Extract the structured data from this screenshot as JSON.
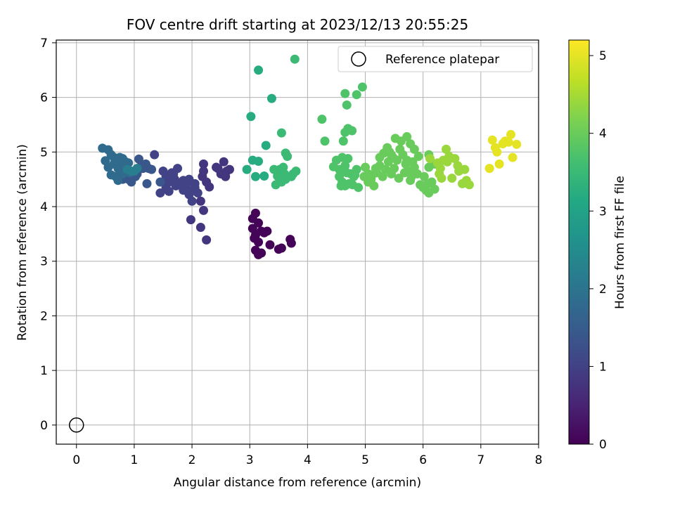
{
  "chart_data": {
    "type": "scatter",
    "title": "FOV centre drift starting at 2023/12/13 20:55:25",
    "xlabel": "Angular distance from reference (arcmin)",
    "ylabel": "Rotation from reference (arcmin)",
    "xlim": [
      -0.35,
      8.0
    ],
    "ylim": [
      -0.35,
      7.05
    ],
    "xticks": [
      "0",
      "1",
      "2",
      "3",
      "4",
      "5",
      "6",
      "7",
      "8"
    ],
    "yticks": [
      "0",
      "1",
      "2",
      "3",
      "4",
      "5",
      "6",
      "7"
    ],
    "grid": true,
    "legend": {
      "location": "top-right",
      "label": "Reference platepar"
    },
    "reference_point": {
      "x": 0,
      "y": 0
    },
    "colorbar": {
      "label": "Hours from first FF file",
      "range": [
        0,
        5.2
      ],
      "ticks": [
        "0",
        "1",
        "2",
        "3",
        "4",
        "5"
      ],
      "colormap": "viridis"
    },
    "points": [
      [
        3.05,
        3.78,
        0.05
      ],
      [
        3.1,
        3.88,
        0.05
      ],
      [
        3.15,
        3.7,
        0.05
      ],
      [
        3.05,
        3.6,
        0.05
      ],
      [
        3.2,
        3.55,
        0.05
      ],
      [
        3.1,
        3.48,
        0.05
      ],
      [
        3.25,
        3.52,
        0.05
      ],
      [
        3.3,
        3.55,
        0.05
      ],
      [
        3.15,
        3.35,
        0.05
      ],
      [
        3.1,
        3.2,
        0.05
      ],
      [
        3.2,
        3.15,
        0.05
      ],
      [
        3.15,
        3.12,
        0.05
      ],
      [
        3.35,
        3.3,
        0.05
      ],
      [
        3.5,
        3.22,
        0.05
      ],
      [
        3.55,
        3.24,
        0.05
      ],
      [
        3.7,
        3.4,
        0.05
      ],
      [
        3.72,
        3.33,
        0.05
      ],
      [
        3.08,
        3.42,
        0.05
      ],
      [
        2.2,
        4.78,
        0.8
      ],
      [
        2.2,
        4.65,
        0.8
      ],
      [
        2.18,
        4.55,
        0.8
      ],
      [
        2.25,
        4.45,
        0.8
      ],
      [
        2.3,
        4.36,
        0.8
      ],
      [
        2.45,
        4.7,
        0.8
      ],
      [
        2.55,
        4.82,
        0.8
      ],
      [
        2.6,
        4.65,
        0.8
      ],
      [
        2.5,
        4.6,
        0.8
      ],
      [
        2.58,
        4.55,
        0.8
      ],
      [
        2.65,
        4.68,
        0.8
      ],
      [
        2.42,
        4.72,
        0.8
      ],
      [
        2.15,
        4.1,
        0.8
      ],
      [
        2.2,
        3.93,
        0.8
      ],
      [
        1.98,
        3.76,
        0.8
      ],
      [
        2.15,
        3.62,
        0.8
      ],
      [
        2.25,
        3.39,
        0.8
      ],
      [
        1.35,
        4.95,
        1.0
      ],
      [
        1.5,
        4.65,
        1.0
      ],
      [
        1.55,
        4.55,
        1.0
      ],
      [
        1.6,
        4.45,
        1.0
      ],
      [
        1.65,
        4.62,
        1.0
      ],
      [
        1.7,
        4.5,
        1.0
      ],
      [
        1.75,
        4.7,
        1.0
      ],
      [
        1.8,
        4.4,
        1.0
      ],
      [
        1.85,
        4.48,
        1.0
      ],
      [
        1.9,
        4.35,
        1.0
      ],
      [
        1.95,
        4.5,
        1.0
      ],
      [
        2.0,
        4.3,
        1.0
      ],
      [
        2.05,
        4.42,
        1.0
      ],
      [
        2.1,
        4.25,
        1.0
      ],
      [
        1.95,
        4.22,
        1.0
      ],
      [
        2.0,
        4.1,
        1.0
      ],
      [
        1.45,
        4.25,
        1.0
      ],
      [
        1.55,
        4.35,
        1.0
      ],
      [
        1.6,
        4.28,
        1.0
      ],
      [
        1.5,
        4.45,
        1.0
      ],
      [
        1.72,
        4.38,
        1.0
      ],
      [
        1.85,
        4.3,
        1.0
      ],
      [
        1.92,
        4.45,
        1.0
      ],
      [
        2.05,
        4.35,
        1.0
      ],
      [
        1.68,
        4.6,
        1.0
      ],
      [
        1.2,
        4.78,
        1.4
      ],
      [
        1.25,
        4.7,
        1.4
      ],
      [
        1.3,
        4.68,
        1.4
      ],
      [
        1.08,
        4.87,
        1.4
      ],
      [
        1.1,
        4.72,
        1.4
      ],
      [
        1.15,
        4.7,
        1.4
      ],
      [
        1.05,
        4.6,
        1.4
      ],
      [
        1.02,
        4.55,
        1.4
      ],
      [
        0.95,
        4.45,
        1.4
      ],
      [
        0.9,
        4.5,
        1.4
      ],
      [
        0.98,
        4.62,
        1.4
      ],
      [
        1.22,
        4.42,
        1.4
      ],
      [
        0.85,
        4.58,
        1.4
      ],
      [
        0.8,
        4.5,
        1.4
      ],
      [
        0.75,
        4.55,
        1.4
      ],
      [
        1.45,
        4.45,
        1.4
      ],
      [
        0.45,
        5.07,
        1.8
      ],
      [
        0.55,
        5.04,
        1.8
      ],
      [
        0.6,
        4.95,
        1.8
      ],
      [
        0.65,
        4.9,
        1.8
      ],
      [
        0.7,
        4.85,
        1.8
      ],
      [
        0.75,
        4.9,
        1.8
      ],
      [
        0.8,
        4.88,
        1.8
      ],
      [
        0.85,
        4.82,
        1.8
      ],
      [
        0.9,
        4.8,
        1.8
      ],
      [
        0.78,
        4.75,
        1.8
      ],
      [
        0.72,
        4.7,
        1.8
      ],
      [
        0.65,
        4.78,
        1.8
      ],
      [
        0.5,
        4.84,
        1.8
      ],
      [
        0.55,
        4.72,
        1.8
      ],
      [
        0.6,
        4.58,
        1.8
      ],
      [
        0.68,
        4.55,
        1.8
      ],
      [
        0.72,
        4.48,
        1.8
      ],
      [
        0.8,
        4.6,
        1.8
      ],
      [
        0.85,
        4.7,
        1.8
      ],
      [
        0.92,
        4.62,
        1.8
      ],
      [
        0.75,
        4.62,
        1.8
      ],
      [
        0.95,
        4.65,
        2.2
      ],
      [
        1.0,
        4.65,
        2.2
      ],
      [
        1.05,
        4.7,
        2.2
      ],
      [
        0.88,
        4.68,
        2.2
      ],
      [
        2.95,
        4.68,
        3.2
      ],
      [
        3.05,
        4.85,
        3.2
      ],
      [
        3.15,
        4.83,
        3.2
      ],
      [
        3.1,
        4.55,
        3.2
      ],
      [
        3.25,
        4.56,
        3.2
      ],
      [
        3.02,
        5.65,
        3.2
      ],
      [
        3.28,
        5.12,
        3.2
      ],
      [
        3.38,
        5.98,
        3.2
      ],
      [
        3.15,
        6.5,
        3.2
      ],
      [
        3.45,
        4.4,
        3.5
      ],
      [
        3.48,
        4.56,
        3.5
      ],
      [
        3.52,
        4.68,
        3.5
      ],
      [
        3.55,
        4.45,
        3.5
      ],
      [
        3.58,
        4.72,
        3.5
      ],
      [
        3.6,
        4.6,
        3.5
      ],
      [
        3.62,
        4.98,
        3.5
      ],
      [
        3.65,
        4.92,
        3.5
      ],
      [
        3.62,
        4.5,
        3.5
      ],
      [
        3.72,
        4.55,
        3.5
      ],
      [
        3.75,
        4.6,
        3.5
      ],
      [
        3.8,
        4.65,
        3.5
      ],
      [
        3.55,
        5.35,
        3.5
      ],
      [
        3.78,
        6.7,
        3.5
      ],
      [
        3.42,
        4.68,
        3.5
      ],
      [
        4.25,
        5.6,
        3.75
      ],
      [
        4.3,
        5.2,
        3.75
      ],
      [
        4.65,
        6.07,
        3.75
      ],
      [
        4.85,
        6.05,
        3.75
      ],
      [
        4.95,
        6.19,
        3.75
      ],
      [
        4.68,
        5.86,
        3.75
      ],
      [
        4.65,
        5.36,
        3.75
      ],
      [
        4.7,
        5.43,
        3.75
      ],
      [
        4.77,
        5.39,
        3.75
      ],
      [
        4.62,
        5.2,
        3.75
      ],
      [
        4.45,
        4.73,
        3.75
      ],
      [
        4.5,
        4.85,
        3.75
      ],
      [
        4.55,
        4.68,
        3.75
      ],
      [
        4.6,
        4.9,
        3.75
      ],
      [
        4.65,
        4.75,
        3.75
      ],
      [
        4.7,
        4.88,
        3.75
      ],
      [
        4.75,
        4.6,
        3.75
      ],
      [
        4.8,
        4.55,
        3.75
      ],
      [
        4.85,
        4.68,
        3.75
      ],
      [
        4.6,
        4.45,
        3.75
      ],
      [
        4.65,
        4.38,
        3.75
      ],
      [
        4.72,
        4.42,
        3.75
      ],
      [
        4.78,
        4.4,
        3.75
      ],
      [
        4.88,
        4.35,
        3.75
      ],
      [
        4.58,
        4.38,
        3.75
      ],
      [
        4.68,
        4.62,
        3.75
      ],
      [
        4.82,
        4.58,
        3.75
      ],
      [
        4.55,
        4.55,
        3.75
      ],
      [
        5.0,
        4.72,
        4.0
      ],
      [
        5.05,
        4.6,
        4.0
      ],
      [
        5.1,
        4.5,
        4.0
      ],
      [
        5.15,
        4.38,
        4.0
      ],
      [
        5.2,
        4.62,
        4.0
      ],
      [
        5.25,
        4.75,
        4.0
      ],
      [
        5.3,
        4.55,
        4.0
      ],
      [
        5.35,
        4.68,
        4.0
      ],
      [
        5.4,
        4.82,
        4.0
      ],
      [
        5.45,
        4.95,
        4.0
      ],
      [
        5.5,
        4.7,
        4.0
      ],
      [
        5.38,
        5.08,
        4.0
      ],
      [
        5.42,
        5.0,
        4.0
      ],
      [
        5.48,
        4.9,
        4.0
      ],
      [
        5.55,
        4.85,
        4.0
      ],
      [
        5.6,
        5.05,
        4.0
      ],
      [
        5.65,
        4.95,
        4.0
      ],
      [
        5.7,
        4.78,
        4.0
      ],
      [
        5.75,
        4.65,
        4.0
      ],
      [
        5.8,
        4.55,
        4.0
      ],
      [
        5.85,
        4.72,
        4.0
      ],
      [
        5.9,
        4.6,
        4.0
      ],
      [
        5.95,
        4.4,
        4.0
      ],
      [
        6.0,
        4.35,
        4.0
      ],
      [
        6.05,
        4.3,
        4.0
      ],
      [
        6.1,
        4.25,
        4.0
      ],
      [
        6.15,
        4.45,
        4.0
      ],
      [
        6.2,
        4.32,
        4.0
      ],
      [
        5.52,
        5.25,
        4.0
      ],
      [
        5.62,
        5.2,
        4.0
      ],
      [
        5.72,
        5.28,
        4.0
      ],
      [
        5.78,
        5.15,
        4.0
      ],
      [
        5.85,
        5.05,
        4.0
      ],
      [
        5.25,
        4.9,
        4.0
      ],
      [
        5.32,
        4.98,
        4.0
      ],
      [
        5.12,
        4.58,
        4.0
      ],
      [
        5.05,
        4.45,
        4.0
      ],
      [
        4.98,
        4.55,
        4.0
      ],
      [
        5.18,
        4.7,
        4.0
      ],
      [
        5.45,
        4.6,
        4.0
      ],
      [
        5.58,
        4.52,
        4.0
      ],
      [
        5.68,
        4.62,
        4.0
      ],
      [
        5.78,
        4.48,
        4.0
      ],
      [
        6.08,
        4.42,
        4.0
      ],
      [
        6.02,
        4.55,
        4.0
      ],
      [
        5.72,
        4.85,
        4.0
      ],
      [
        5.82,
        4.82,
        4.0
      ],
      [
        5.92,
        4.92,
        4.0
      ],
      [
        6.1,
        4.95,
        4.0
      ],
      [
        6.1,
        4.72,
        4.0
      ],
      [
        6.2,
        4.78,
        4.0
      ],
      [
        6.12,
        4.88,
        4.4
      ],
      [
        6.25,
        4.8,
        4.4
      ],
      [
        6.3,
        4.7,
        4.4
      ],
      [
        6.35,
        4.85,
        4.4
      ],
      [
        6.28,
        4.6,
        4.4
      ],
      [
        6.32,
        4.52,
        4.4
      ],
      [
        6.4,
        5.05,
        4.4
      ],
      [
        6.45,
        4.92,
        4.4
      ],
      [
        6.55,
        4.88,
        4.4
      ],
      [
        6.5,
        4.52,
        4.4
      ],
      [
        6.6,
        4.75,
        4.4
      ],
      [
        6.62,
        4.65,
        4.4
      ],
      [
        6.72,
        4.68,
        4.4
      ],
      [
        6.75,
        4.48,
        4.4
      ],
      [
        6.8,
        4.4,
        4.4
      ],
      [
        6.68,
        4.42,
        4.4
      ],
      [
        6.42,
        4.82,
        4.4
      ],
      [
        7.15,
        4.7,
        5.0
      ],
      [
        7.2,
        5.22,
        5.0
      ],
      [
        7.25,
        5.08,
        5.0
      ],
      [
        7.28,
        5.0,
        5.0
      ],
      [
        7.32,
        4.78,
        5.0
      ],
      [
        7.38,
        5.15,
        5.0
      ],
      [
        7.42,
        5.2,
        5.0
      ],
      [
        7.48,
        5.18,
        5.0
      ],
      [
        7.52,
        5.32,
        5.0
      ],
      [
        7.55,
        4.9,
        5.0
      ],
      [
        7.62,
        5.14,
        5.0
      ]
    ]
  }
}
